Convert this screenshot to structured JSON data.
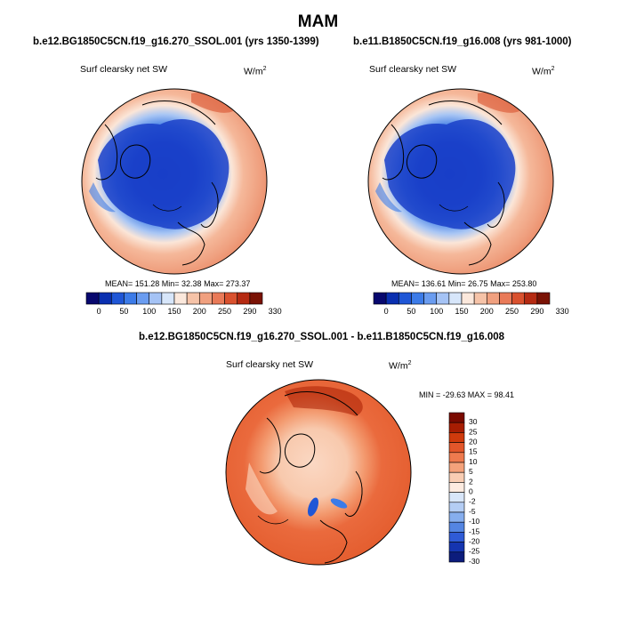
{
  "title": "MAM",
  "panels": [
    {
      "case_title": "b.e12.BG1850C5CN.f19_g16.270_SSOL.001 (yrs 1350-1399)",
      "variable": "Surf clearsky net SW",
      "units_base": "W/m",
      "units_exp": "2",
      "stats": "MEAN= 151.28  Min=  32.38  Max= 273.37",
      "colorbar_ticks": [
        "0",
        "50",
        "100",
        "150",
        "200",
        "250",
        "290",
        "330"
      ]
    },
    {
      "case_title": "b.e11.B1850C5CN.f19_g16.008 (yrs 981-1000)",
      "variable": "Surf clearsky net SW",
      "units_base": "W/m",
      "units_exp": "2",
      "stats": "MEAN= 136.61  Min=  26.75  Max= 253.80",
      "colorbar_ticks": [
        "0",
        "50",
        "100",
        "150",
        "200",
        "250",
        "290",
        "330"
      ]
    }
  ],
  "diff_panel": {
    "case_title": "b.e12.BG1850C5CN.f19_g16.270_SSOL.001 - b.e11.B1850C5CN.f19_g16.008",
    "variable": "Surf clearsky net SW",
    "units_base": "W/m",
    "units_exp": "2",
    "stats": "MIN = -29.63 MAX =  98.41",
    "colorbar_ticks": [
      "30",
      "25",
      "20",
      "15",
      "10",
      "5",
      "2",
      "0",
      "-2",
      "-5",
      "-10",
      "-15",
      "-20",
      "-25",
      "-30"
    ]
  },
  "colors": {
    "abs_scale": [
      "#08086e",
      "#0a2fb0",
      "#1f56d6",
      "#3c7be8",
      "#6a9cf0",
      "#a5c3f5",
      "#d7e6fa",
      "#fbe8dc",
      "#f6c3a8",
      "#f0a07f",
      "#e97a58",
      "#d9512e",
      "#b52a12",
      "#7a1204"
    ],
    "diff_scale": [
      "#7a0a00",
      "#a71d02",
      "#cf3a0c",
      "#e2562a",
      "#ee7a4e",
      "#f4a27b",
      "#f9cdb3",
      "#fdebe0",
      "#d8e6f9",
      "#b4cdf4",
      "#86aeee",
      "#5485e2",
      "#2f5bd6",
      "#1535b0",
      "#0c1c7c"
    ]
  },
  "chart_data": [
    {
      "type": "heatmap",
      "projection": "north-polar-stereographic",
      "title": "b.e12.BG1850C5CN.f19_g16.270_SSOL.001 (yrs 1350-1399)",
      "variable": "Surf clearsky net SW",
      "units": "W/m2",
      "mean": 151.28,
      "min": 32.38,
      "max": 273.37,
      "levels": [
        0,
        25,
        50,
        75,
        100,
        125,
        150,
        175,
        200,
        225,
        250,
        270,
        290,
        310,
        330
      ]
    },
    {
      "type": "heatmap",
      "projection": "north-polar-stereographic",
      "title": "b.e11.B1850C5CN.f19_g16.008 (yrs 981-1000)",
      "variable": "Surf clearsky net SW",
      "units": "W/m2",
      "mean": 136.61,
      "min": 26.75,
      "max": 253.8,
      "levels": [
        0,
        25,
        50,
        75,
        100,
        125,
        150,
        175,
        200,
        225,
        250,
        270,
        290,
        310,
        330
      ]
    },
    {
      "type": "heatmap",
      "projection": "north-polar-stereographic",
      "title": "b.e12.BG1850C5CN.f19_g16.270_SSOL.001 - b.e11.B1850C5CN.f19_g16.008",
      "variable": "Surf clearsky net SW",
      "units": "W/m2",
      "min": -29.63,
      "max": 98.41,
      "levels": [
        -30,
        -25,
        -20,
        -15,
        -10,
        -5,
        -2,
        0,
        2,
        5,
        10,
        15,
        20,
        25,
        30
      ]
    }
  ]
}
